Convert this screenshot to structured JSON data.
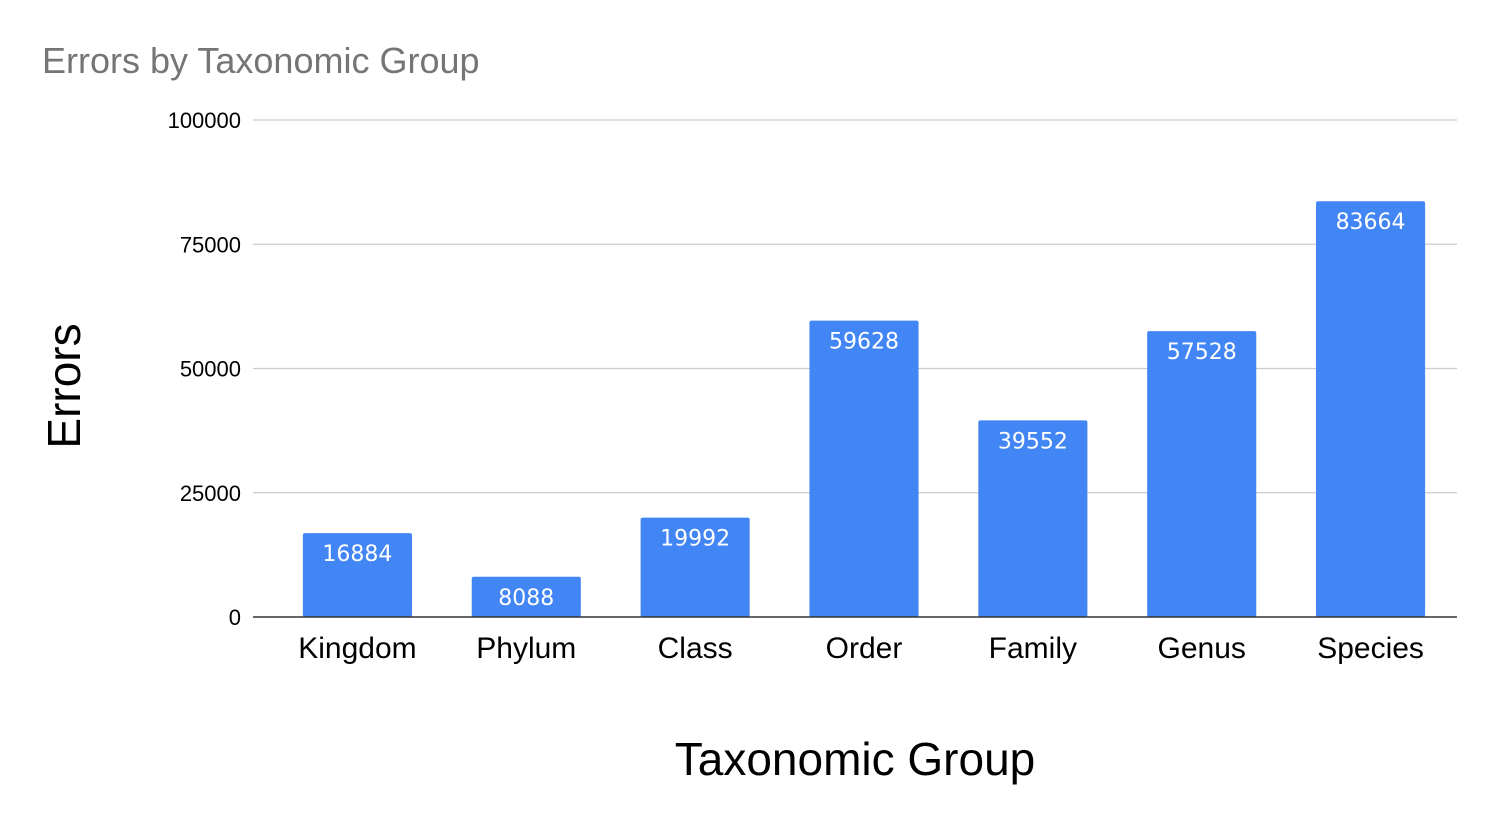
{
  "chart_data": {
    "type": "bar",
    "title": "Errors by Taxonomic Group",
    "xlabel": "Taxonomic Group",
    "ylabel": "Errors",
    "categories": [
      "Kingdom",
      "Phylum",
      "Class",
      "Order",
      "Family",
      "Genus",
      "Species"
    ],
    "values": [
      16884,
      8088,
      19992,
      59628,
      39552,
      57528,
      83664
    ],
    "ylim": [
      0,
      100000
    ],
    "yticks": [
      "0",
      "25000",
      "50000",
      "75000",
      "100000"
    ],
    "data_labels": [
      "16884",
      "8088",
      "19992",
      "59628",
      "39552",
      "57528",
      "83664"
    ],
    "grid": true,
    "legend": "none",
    "bar_color": "#4285f4"
  }
}
